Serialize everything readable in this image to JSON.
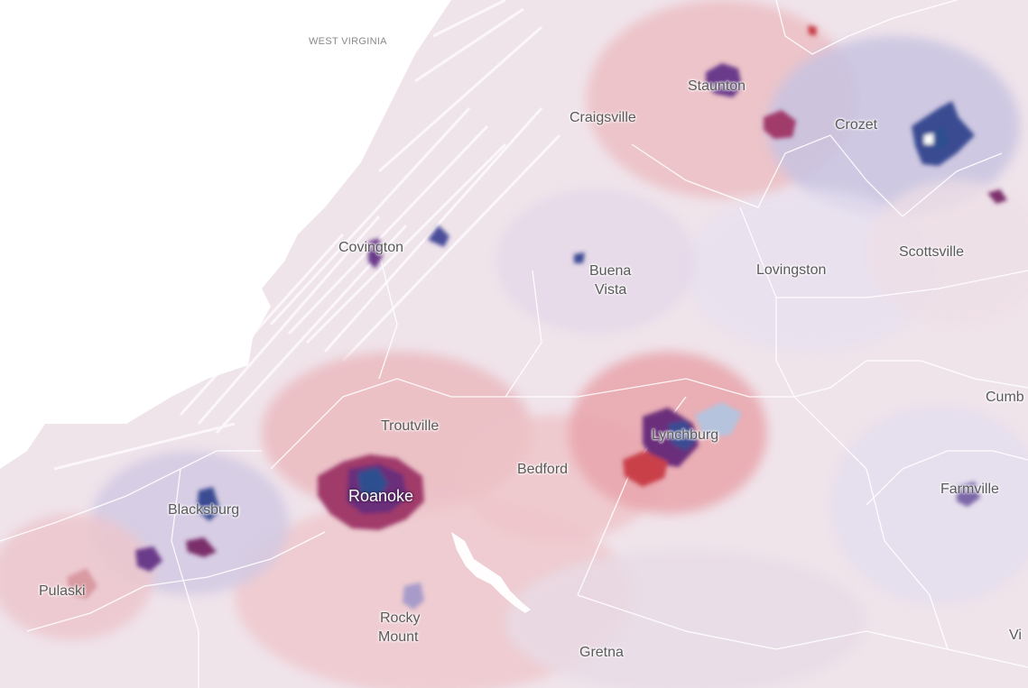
{
  "map": {
    "state_label": "WEST VIRGINIA",
    "places": [
      {
        "id": "staunton",
        "name": "Staunton"
      },
      {
        "id": "craigsville",
        "name": "Craigsville"
      },
      {
        "id": "crozet",
        "name": "Crozet"
      },
      {
        "id": "covington",
        "name": "Covington"
      },
      {
        "id": "buena-vista-1",
        "name": "Buena"
      },
      {
        "id": "buena-vista-2",
        "name": "Vista"
      },
      {
        "id": "lovingston",
        "name": "Lovingston"
      },
      {
        "id": "scottsville",
        "name": "Scottsville"
      },
      {
        "id": "troutville",
        "name": "Troutville"
      },
      {
        "id": "lynchburg",
        "name": "Lynchburg"
      },
      {
        "id": "bedford",
        "name": "Bedford"
      },
      {
        "id": "roanoke",
        "name": "Roanoke"
      },
      {
        "id": "blacksburg",
        "name": "Blacksburg"
      },
      {
        "id": "pulaski",
        "name": "Pulaski"
      },
      {
        "id": "farmville",
        "name": "Farmville"
      },
      {
        "id": "cumb",
        "name": "Cumb"
      },
      {
        "id": "rocky-mount-1",
        "name": "Rocky"
      },
      {
        "id": "rocky-mount-2",
        "name": "Mount"
      },
      {
        "id": "gretna",
        "name": "Gretna"
      },
      {
        "id": "vi",
        "name": "Vi"
      }
    ],
    "colors": {
      "background": "#ffffff",
      "land_neutral": "#efe3ea",
      "lean_red_light": "#f1d3d6",
      "lean_red": "#e6a9ae",
      "strong_red": "#c9414a",
      "lean_blue_light": "#ddd8ea",
      "lean_blue": "#a59cc9",
      "strong_blue": "#2f4f8f",
      "purple": "#7a2f6a",
      "border": "#ffffff"
    }
  }
}
